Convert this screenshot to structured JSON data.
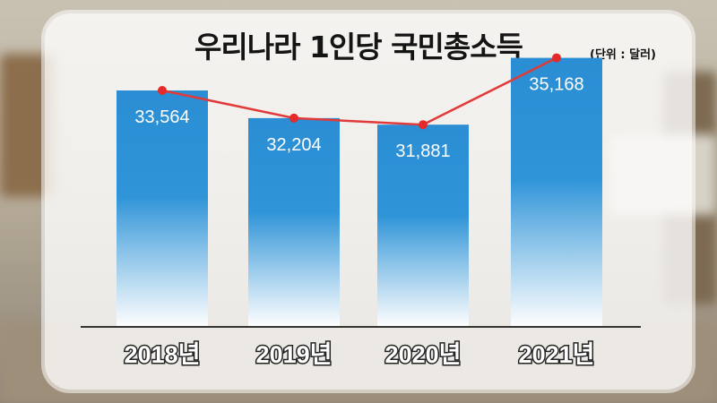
{
  "title": "우리나라 1인당 국민총소득",
  "unit_label": "(단위 : 달러)",
  "colors": {
    "bar": "#2b8ed4",
    "line": "#e03a3a",
    "point": "#e52a2a"
  },
  "chart_data": {
    "type": "bar",
    "title": "우리나라 1인당 국민총소득",
    "unit": "(단위 : 달러)",
    "categories": [
      "2018년",
      "2019년",
      "2020년",
      "2021년"
    ],
    "series": [
      {
        "values": [
          33564,
          32204,
          31881,
          35168
        ]
      }
    ],
    "value_labels": [
      "33,564",
      "32,204",
      "31,881",
      "35,168"
    ],
    "overlay_line": true,
    "legend": "none",
    "grid": false
  }
}
